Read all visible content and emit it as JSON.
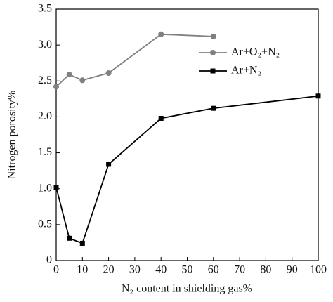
{
  "chart_data": {
    "type": "line",
    "xlabel": "N₂ content in shielding gas%",
    "ylabel": "Nitrogen porosity%",
    "xlim": [
      0,
      100
    ],
    "xticks": [
      0,
      10,
      20,
      30,
      40,
      50,
      60,
      70,
      80,
      90,
      100
    ],
    "ylim": [
      0,
      3.5
    ],
    "yticks": [
      0,
      0.5,
      {
        "value": 1,
        "label": "1.0"
      },
      1.5,
      {
        "value": 2,
        "label": "2.0"
      },
      2.5,
      {
        "value": 3,
        "label": "3.0"
      },
      3.5
    ],
    "legend": "upper right",
    "series": [
      {
        "name": "Ar+O₂+N₂",
        "color": "#808080",
        "marker": "circle",
        "x": [
          0,
          5,
          10,
          20,
          40,
          60
        ],
        "values": [
          2.42,
          2.59,
          2.51,
          2.61,
          3.15,
          3.12
        ]
      },
      {
        "name": "Ar+N₂",
        "color": "#000000",
        "marker": "square",
        "x": [
          0,
          5,
          10,
          20,
          40,
          60,
          100
        ],
        "values": [
          1.02,
          0.31,
          0.24,
          1.34,
          1.98,
          2.12,
          2.29
        ]
      }
    ]
  }
}
